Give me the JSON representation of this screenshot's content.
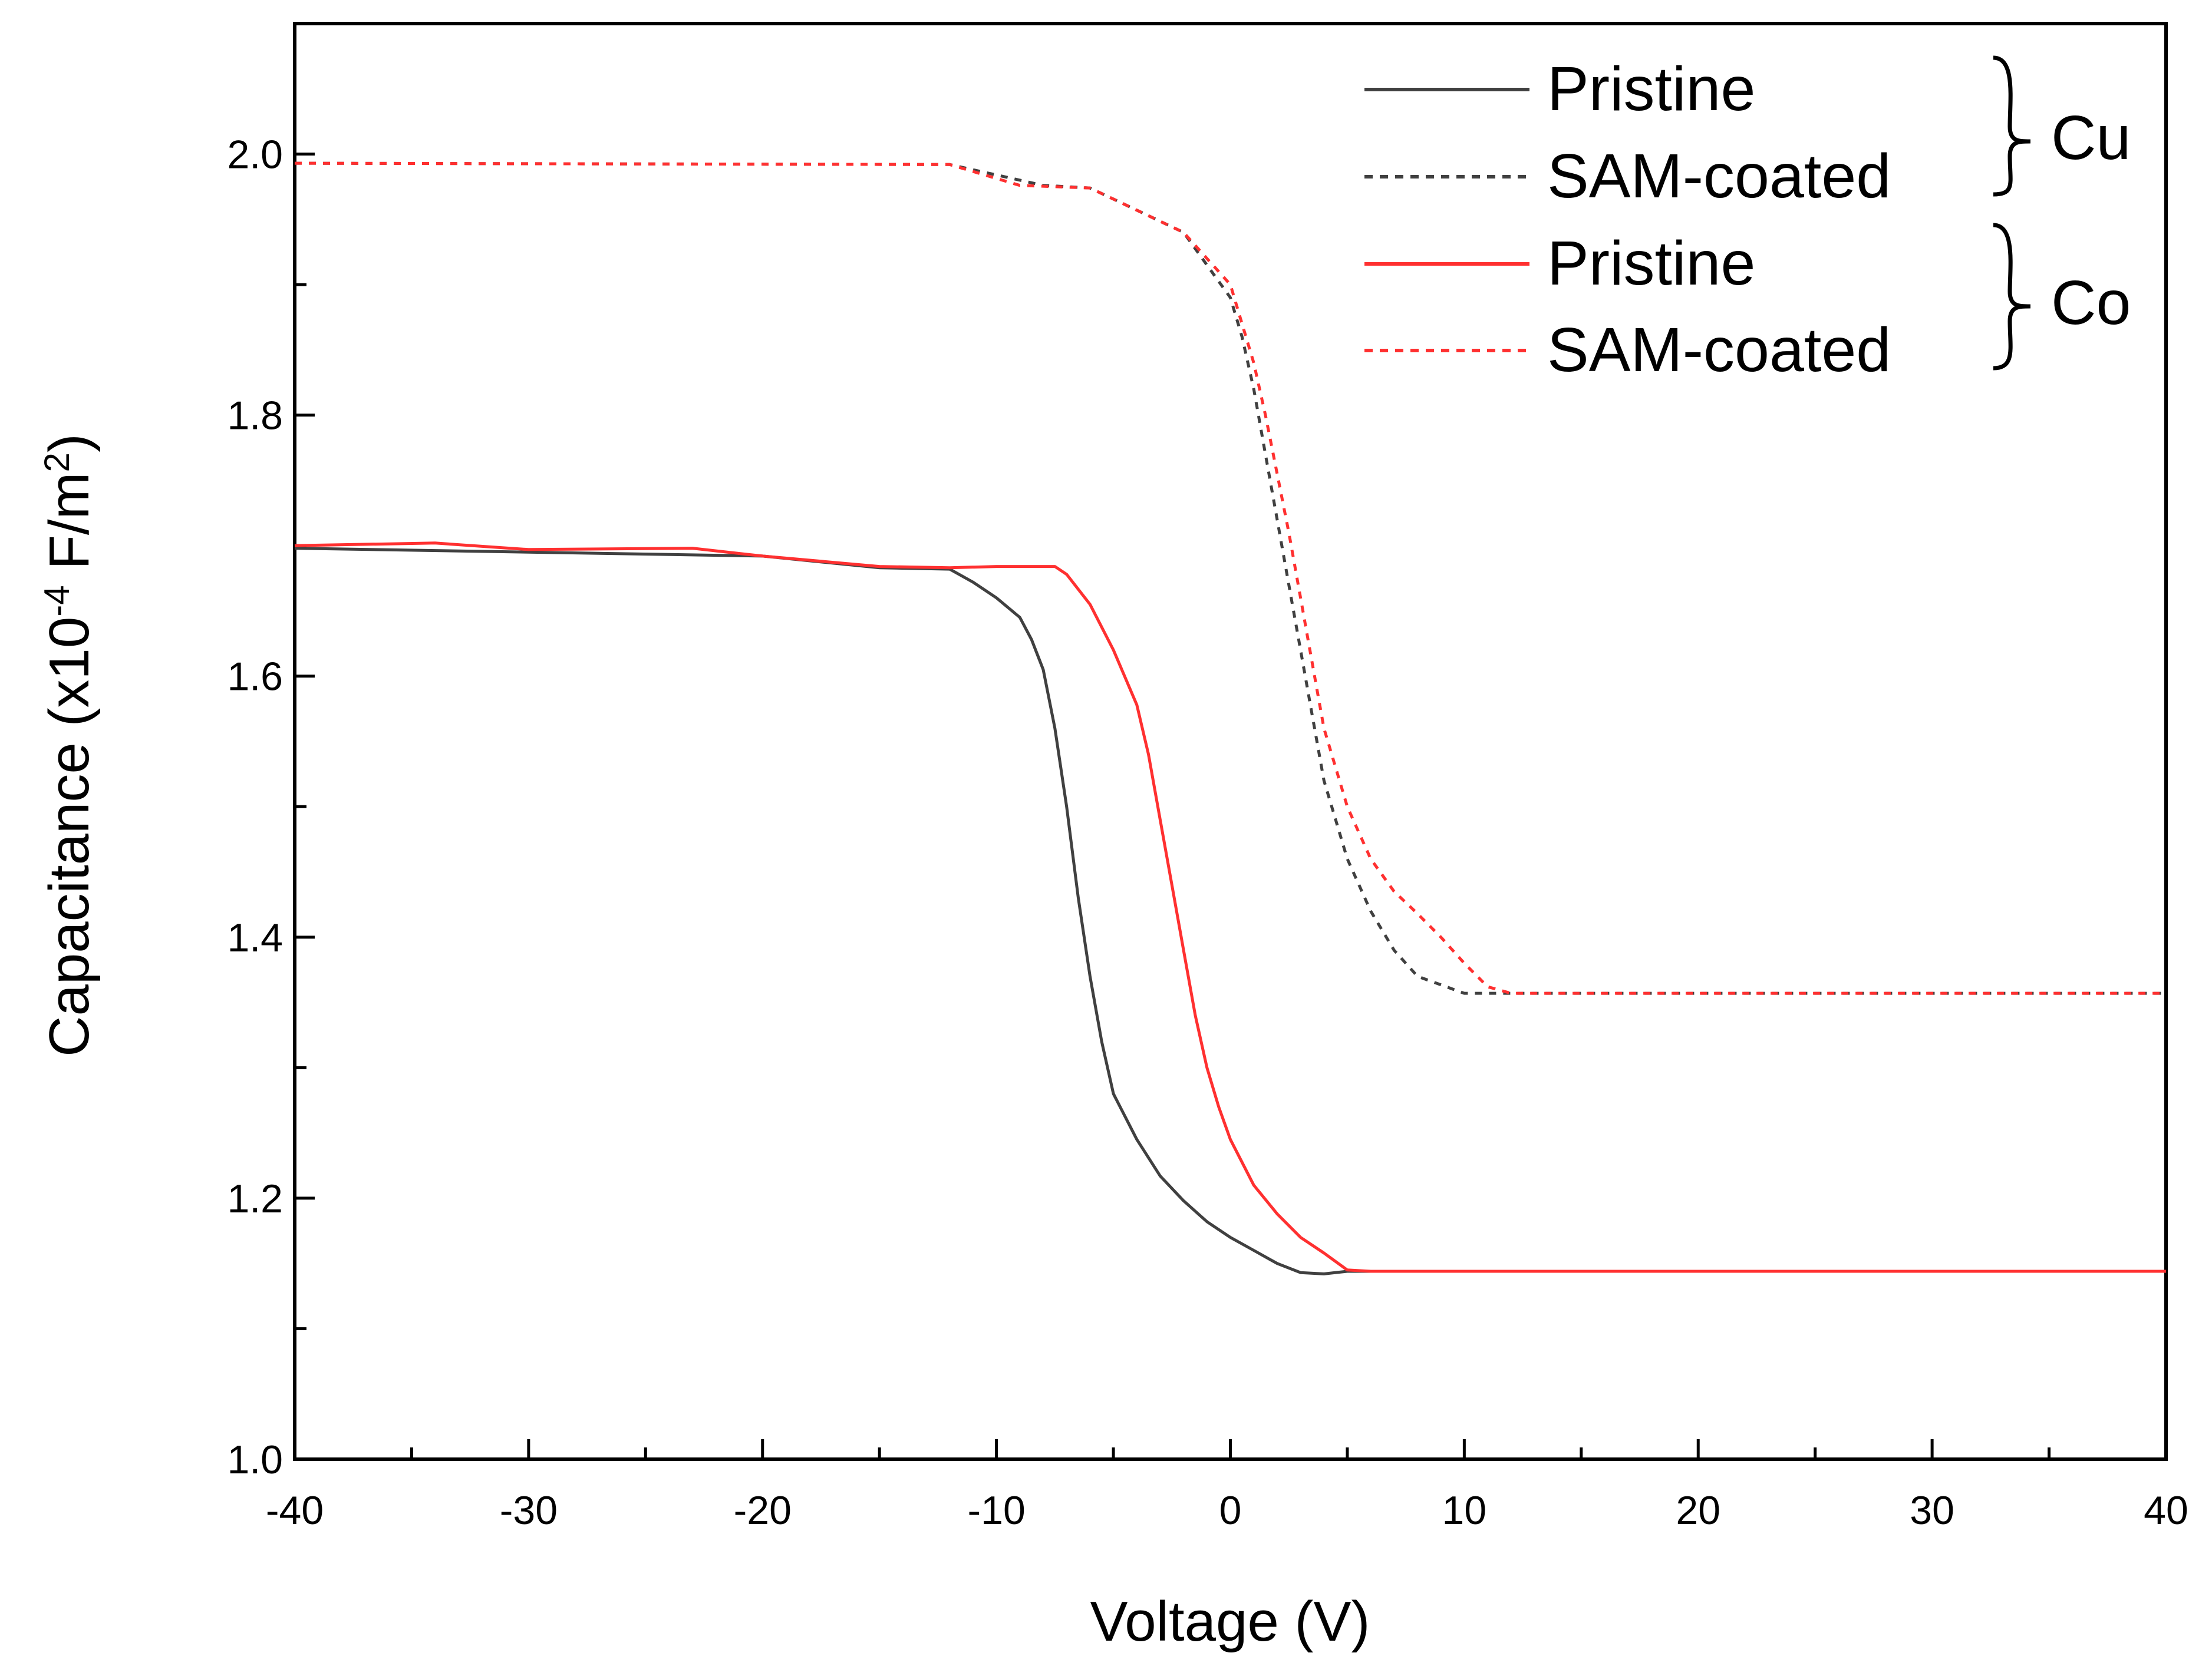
{
  "chart_data": {
    "type": "line",
    "xlabel": "Voltage (V)",
    "ylabel": {
      "prefix": "Capacitance (x10",
      "exp1": "-4",
      "mid": " F/m",
      "exp2": "2",
      "suffix": ")"
    },
    "xlim": [
      -40,
      40
    ],
    "ylim": [
      1.0,
      2.1
    ],
    "x_ticks": [
      -40,
      -30,
      -20,
      -10,
      0,
      10,
      20,
      30,
      40
    ],
    "x_tick_labels": [
      "-40",
      "-30",
      "-20",
      "-10",
      "0",
      "10",
      "20",
      "30",
      "40"
    ],
    "x_minor_ticks": [
      -35,
      -25,
      -15,
      -5,
      5,
      15,
      25,
      35
    ],
    "y_ticks": [
      1.0,
      1.2,
      1.4,
      1.6,
      1.8,
      2.0
    ],
    "y_tick_labels": [
      "1.0",
      "1.2",
      "1.4",
      "1.6",
      "1.8",
      "2.0"
    ],
    "y_minor_ticks": [
      1.1,
      1.3,
      1.5,
      1.7,
      1.9
    ],
    "grid": false,
    "legend_position": "top-right",
    "series": [
      {
        "name": "Pristine",
        "group": "Cu",
        "color": "#404040",
        "style": "solid",
        "x": [
          -40,
          -20,
          -15,
          -12,
          -11,
          -10,
          -9,
          -8.5,
          -8,
          -7.5,
          -7,
          -6.5,
          -6,
          -5.5,
          -5,
          -4,
          -3,
          -2,
          -1,
          0,
          1,
          2,
          3,
          4,
          5,
          40
        ],
        "y": [
          1.698,
          1.692,
          1.683,
          1.682,
          1.672,
          1.66,
          1.645,
          1.628,
          1.605,
          1.56,
          1.5,
          1.43,
          1.37,
          1.32,
          1.28,
          1.245,
          1.217,
          1.198,
          1.182,
          1.17,
          1.16,
          1.15,
          1.143,
          1.142,
          1.144,
          1.144
        ]
      },
      {
        "name": "SAM-coated",
        "group": "Cu",
        "color": "#404040",
        "style": "dotted",
        "x": [
          -40,
          -12,
          -8,
          -6,
          -4,
          -2,
          -1,
          0,
          0.5,
          1,
          1.5,
          2,
          2.5,
          3,
          3.5,
          4,
          5,
          6,
          7,
          8,
          10,
          40
        ],
        "y": [
          1.993,
          1.992,
          1.976,
          1.974,
          1.957,
          1.94,
          1.915,
          1.89,
          1.86,
          1.82,
          1.77,
          1.72,
          1.67,
          1.62,
          1.57,
          1.52,
          1.46,
          1.42,
          1.39,
          1.37,
          1.357,
          1.357
        ]
      },
      {
        "name": "Pristine",
        "group": "Co",
        "color": "#ff3030",
        "style": "solid",
        "x": [
          -40,
          -34,
          -30,
          -23,
          -20,
          -15,
          -12,
          -10,
          -7.5,
          -7,
          -6,
          -5,
          -4,
          -3.5,
          -3,
          -2.5,
          -2,
          -1.5,
          -1,
          -0.5,
          0,
          1,
          2,
          3,
          4,
          5,
          6,
          40
        ],
        "y": [
          1.7,
          1.702,
          1.697,
          1.698,
          1.692,
          1.684,
          1.683,
          1.684,
          1.684,
          1.678,
          1.655,
          1.62,
          1.578,
          1.54,
          1.49,
          1.44,
          1.39,
          1.34,
          1.3,
          1.27,
          1.245,
          1.21,
          1.188,
          1.17,
          1.158,
          1.145,
          1.144,
          1.144
        ]
      },
      {
        "name": "SAM-coated",
        "group": "Co",
        "color": "#ff3030",
        "style": "dotted",
        "x": [
          -40,
          -12,
          -9,
          -6,
          -4,
          -2,
          -1,
          0,
          0.5,
          1,
          1.5,
          2,
          2.5,
          3,
          3.5,
          4,
          5,
          6,
          7,
          8,
          9,
          10,
          11,
          12,
          40
        ],
        "y": [
          1.993,
          1.992,
          1.976,
          1.974,
          1.957,
          1.94,
          1.92,
          1.9,
          1.87,
          1.84,
          1.8,
          1.755,
          1.71,
          1.66,
          1.61,
          1.56,
          1.5,
          1.46,
          1.435,
          1.418,
          1.4,
          1.38,
          1.362,
          1.357,
          1.357
        ]
      }
    ],
    "legend_groups": [
      {
        "label": "Cu",
        "entries": [
          "Pristine",
          "SAM-coated"
        ]
      },
      {
        "label": "Co",
        "entries": [
          "Pristine",
          "SAM-coated"
        ]
      }
    ]
  }
}
